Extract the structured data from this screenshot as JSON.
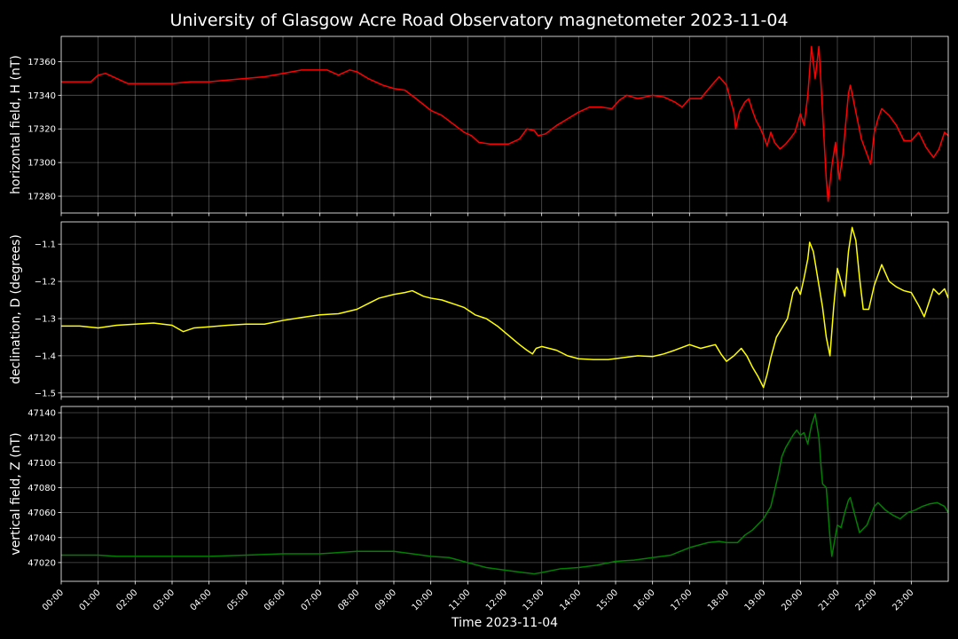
{
  "chart_data": {
    "type": "line",
    "title": "University of Glasgow Acre Road Observatory magnetometer 2023-11-04",
    "xlabel": "Time 2023-11-04",
    "x_ticks": [
      "00:00",
      "01:00",
      "02:00",
      "03:00",
      "04:00",
      "05:00",
      "06:00",
      "07:00",
      "08:00",
      "09:00",
      "10:00",
      "11:00",
      "12:00",
      "13:00",
      "14:00",
      "15:00",
      "16:00",
      "17:00",
      "18:00",
      "19:00",
      "20:00",
      "21:00",
      "22:00",
      "23:00"
    ],
    "xlim": [
      0,
      24
    ],
    "grid": true,
    "panels": [
      {
        "ylabel": "horizontal field, H (nT)",
        "color": "#ff0000",
        "ylim": [
          17270,
          17375
        ],
        "yticks": [
          17280,
          17300,
          17320,
          17340,
          17360
        ],
        "ytick_labels": [
          "17280",
          "17300",
          "17320",
          "17340",
          "17360"
        ],
        "points": [
          [
            0,
            17348
          ],
          [
            0.5,
            17348
          ],
          [
            0.8,
            17348
          ],
          [
            1.0,
            17352
          ],
          [
            1.2,
            17353
          ],
          [
            1.5,
            17350
          ],
          [
            1.8,
            17347
          ],
          [
            2.0,
            17347
          ],
          [
            2.5,
            17347
          ],
          [
            3.0,
            17347
          ],
          [
            3.5,
            17348
          ],
          [
            4.0,
            17348
          ],
          [
            4.5,
            17349
          ],
          [
            5.0,
            17350
          ],
          [
            5.5,
            17351
          ],
          [
            6.0,
            17353
          ],
          [
            6.5,
            17355
          ],
          [
            7.0,
            17355
          ],
          [
            7.2,
            17355
          ],
          [
            7.5,
            17352
          ],
          [
            7.8,
            17355
          ],
          [
            8.0,
            17354
          ],
          [
            8.3,
            17350
          ],
          [
            8.7,
            17346
          ],
          [
            9.0,
            17344
          ],
          [
            9.3,
            17343
          ],
          [
            9.6,
            17338
          ],
          [
            10.0,
            17331
          ],
          [
            10.3,
            17328
          ],
          [
            10.6,
            17323
          ],
          [
            10.9,
            17318
          ],
          [
            11.1,
            17316
          ],
          [
            11.3,
            17312
          ],
          [
            11.6,
            17311
          ],
          [
            11.9,
            17311
          ],
          [
            12.1,
            17311
          ],
          [
            12.4,
            17314
          ],
          [
            12.6,
            17320
          ],
          [
            12.8,
            17319
          ],
          [
            12.9,
            17316
          ],
          [
            13.1,
            17317
          ],
          [
            13.4,
            17322
          ],
          [
            13.7,
            17326
          ],
          [
            14.0,
            17330
          ],
          [
            14.3,
            17333
          ],
          [
            14.6,
            17333
          ],
          [
            14.9,
            17332
          ],
          [
            15.1,
            17337
          ],
          [
            15.3,
            17340
          ],
          [
            15.6,
            17338
          ],
          [
            16.0,
            17340
          ],
          [
            16.3,
            17339
          ],
          [
            16.6,
            17336
          ],
          [
            16.8,
            17333
          ],
          [
            17.0,
            17338
          ],
          [
            17.3,
            17338
          ],
          [
            17.6,
            17346
          ],
          [
            17.8,
            17351
          ],
          [
            18.0,
            17346
          ],
          [
            18.1,
            17338
          ],
          [
            18.2,
            17330
          ],
          [
            18.25,
            17320
          ],
          [
            18.35,
            17330
          ],
          [
            18.5,
            17336
          ],
          [
            18.6,
            17338
          ],
          [
            18.7,
            17331
          ],
          [
            18.8,
            17325
          ],
          [
            18.9,
            17321
          ],
          [
            19.0,
            17316
          ],
          [
            19.1,
            17310
          ],
          [
            19.2,
            17318
          ],
          [
            19.3,
            17312
          ],
          [
            19.45,
            17308
          ],
          [
            19.6,
            17311
          ],
          [
            19.75,
            17315
          ],
          [
            19.85,
            17318
          ],
          [
            20.0,
            17329
          ],
          [
            20.1,
            17322
          ],
          [
            20.2,
            17340
          ],
          [
            20.3,
            17369
          ],
          [
            20.4,
            17350
          ],
          [
            20.5,
            17369
          ],
          [
            20.6,
            17330
          ],
          [
            20.7,
            17290
          ],
          [
            20.75,
            17277
          ],
          [
            20.85,
            17298
          ],
          [
            20.95,
            17312
          ],
          [
            21.05,
            17290
          ],
          [
            21.15,
            17305
          ],
          [
            21.3,
            17341
          ],
          [
            21.35,
            17346
          ],
          [
            21.5,
            17330
          ],
          [
            21.65,
            17314
          ],
          [
            21.8,
            17305
          ],
          [
            21.9,
            17299
          ],
          [
            22.0,
            17318
          ],
          [
            22.1,
            17326
          ],
          [
            22.2,
            17332
          ],
          [
            22.4,
            17328
          ],
          [
            22.6,
            17322
          ],
          [
            22.8,
            17313
          ],
          [
            23.0,
            17313
          ],
          [
            23.2,
            17318
          ],
          [
            23.4,
            17309
          ],
          [
            23.6,
            17303
          ],
          [
            23.75,
            17308
          ],
          [
            23.9,
            17318
          ],
          [
            24.0,
            17316
          ]
        ]
      },
      {
        "ylabel": "declination, D (degrees)",
        "color": "#ffff00",
        "ylim": [
          -1.51,
          -1.04
        ],
        "yticks": [
          -1.5,
          -1.4,
          -1.3,
          -1.2,
          -1.1
        ],
        "ytick_labels": [
          "−1.5",
          "−1.4",
          "−1.3",
          "−1.2",
          "−1.1"
        ],
        "points": [
          [
            0,
            -1.32
          ],
          [
            0.5,
            -1.32
          ],
          [
            1.0,
            -1.325
          ],
          [
            1.5,
            -1.318
          ],
          [
            2.0,
            -1.315
          ],
          [
            2.5,
            -1.312
          ],
          [
            3.0,
            -1.318
          ],
          [
            3.3,
            -1.335
          ],
          [
            3.6,
            -1.325
          ],
          [
            4.0,
            -1.322
          ],
          [
            4.5,
            -1.318
          ],
          [
            5.0,
            -1.315
          ],
          [
            5.5,
            -1.315
          ],
          [
            6.0,
            -1.305
          ],
          [
            6.5,
            -1.297
          ],
          [
            7.0,
            -1.29
          ],
          [
            7.5,
            -1.287
          ],
          [
            8.0,
            -1.275
          ],
          [
            8.3,
            -1.26
          ],
          [
            8.6,
            -1.245
          ],
          [
            9.0,
            -1.235
          ],
          [
            9.3,
            -1.23
          ],
          [
            9.5,
            -1.225
          ],
          [
            9.8,
            -1.24
          ],
          [
            10.0,
            -1.245
          ],
          [
            10.3,
            -1.25
          ],
          [
            10.6,
            -1.26
          ],
          [
            10.9,
            -1.27
          ],
          [
            11.2,
            -1.29
          ],
          [
            11.5,
            -1.3
          ],
          [
            11.8,
            -1.32
          ],
          [
            12.1,
            -1.345
          ],
          [
            12.4,
            -1.37
          ],
          [
            12.6,
            -1.385
          ],
          [
            12.75,
            -1.395
          ],
          [
            12.85,
            -1.38
          ],
          [
            13.0,
            -1.375
          ],
          [
            13.4,
            -1.385
          ],
          [
            13.7,
            -1.4
          ],
          [
            14.0,
            -1.408
          ],
          [
            14.4,
            -1.41
          ],
          [
            14.8,
            -1.41
          ],
          [
            15.2,
            -1.405
          ],
          [
            15.6,
            -1.4
          ],
          [
            16.0,
            -1.402
          ],
          [
            16.3,
            -1.395
          ],
          [
            16.6,
            -1.385
          ],
          [
            17.0,
            -1.37
          ],
          [
            17.3,
            -1.38
          ],
          [
            17.5,
            -1.375
          ],
          [
            17.7,
            -1.37
          ],
          [
            17.85,
            -1.395
          ],
          [
            18.0,
            -1.415
          ],
          [
            18.2,
            -1.4
          ],
          [
            18.4,
            -1.38
          ],
          [
            18.55,
            -1.4
          ],
          [
            18.7,
            -1.43
          ],
          [
            18.85,
            -1.455
          ],
          [
            19.0,
            -1.485
          ],
          [
            19.1,
            -1.45
          ],
          [
            19.2,
            -1.405
          ],
          [
            19.35,
            -1.35
          ],
          [
            19.5,
            -1.325
          ],
          [
            19.65,
            -1.3
          ],
          [
            19.8,
            -1.23
          ],
          [
            19.9,
            -1.215
          ],
          [
            20.0,
            -1.235
          ],
          [
            20.1,
            -1.19
          ],
          [
            20.2,
            -1.14
          ],
          [
            20.25,
            -1.095
          ],
          [
            20.35,
            -1.12
          ],
          [
            20.5,
            -1.21
          ],
          [
            20.6,
            -1.27
          ],
          [
            20.7,
            -1.35
          ],
          [
            20.8,
            -1.4
          ],
          [
            20.9,
            -1.27
          ],
          [
            21.0,
            -1.165
          ],
          [
            21.1,
            -1.2
          ],
          [
            21.2,
            -1.24
          ],
          [
            21.3,
            -1.12
          ],
          [
            21.4,
            -1.055
          ],
          [
            21.5,
            -1.09
          ],
          [
            21.6,
            -1.19
          ],
          [
            21.7,
            -1.275
          ],
          [
            21.85,
            -1.275
          ],
          [
            22.0,
            -1.21
          ],
          [
            22.2,
            -1.155
          ],
          [
            22.4,
            -1.2
          ],
          [
            22.6,
            -1.215
          ],
          [
            22.8,
            -1.225
          ],
          [
            23.0,
            -1.23
          ],
          [
            23.2,
            -1.265
          ],
          [
            23.35,
            -1.295
          ],
          [
            23.5,
            -1.25
          ],
          [
            23.6,
            -1.22
          ],
          [
            23.75,
            -1.235
          ],
          [
            23.9,
            -1.22
          ],
          [
            24.0,
            -1.245
          ]
        ]
      },
      {
        "ylabel": "vertical field, Z (nT)",
        "color": "#008000",
        "ylim": [
          47005,
          47145
        ],
        "yticks": [
          47020,
          47040,
          47060,
          47080,
          47100,
          47120,
          47140
        ],
        "ytick_labels": [
          "47020",
          "47040",
          "47060",
          "47080",
          "47100",
          "47120",
          "47140"
        ],
        "points": [
          [
            0,
            47026
          ],
          [
            1.0,
            47026
          ],
          [
            1.5,
            47025
          ],
          [
            2.0,
            47025
          ],
          [
            3.0,
            47025
          ],
          [
            4.0,
            47025
          ],
          [
            5.0,
            47026
          ],
          [
            6.0,
            47027
          ],
          [
            7.0,
            47027
          ],
          [
            8.0,
            47029
          ],
          [
            9.0,
            47029
          ],
          [
            9.5,
            47027
          ],
          [
            10.0,
            47025
          ],
          [
            10.5,
            47024
          ],
          [
            11.0,
            47020
          ],
          [
            11.5,
            47016
          ],
          [
            12.0,
            47014
          ],
          [
            12.5,
            47012
          ],
          [
            12.8,
            47011
          ],
          [
            13.0,
            47012
          ],
          [
            13.5,
            47015
          ],
          [
            14.0,
            47016
          ],
          [
            14.5,
            47018
          ],
          [
            15.0,
            47021
          ],
          [
            15.5,
            47022
          ],
          [
            16.0,
            47024
          ],
          [
            16.5,
            47026
          ],
          [
            17.0,
            47032
          ],
          [
            17.5,
            47036
          ],
          [
            17.8,
            47037
          ],
          [
            18.0,
            47036
          ],
          [
            18.3,
            47036
          ],
          [
            18.5,
            47042
          ],
          [
            18.7,
            47046
          ],
          [
            19.0,
            47055
          ],
          [
            19.2,
            47065
          ],
          [
            19.4,
            47090
          ],
          [
            19.5,
            47105
          ],
          [
            19.6,
            47112
          ],
          [
            19.8,
            47122
          ],
          [
            19.9,
            47126
          ],
          [
            20.0,
            47122
          ],
          [
            20.1,
            47124
          ],
          [
            20.2,
            47115
          ],
          [
            20.3,
            47130
          ],
          [
            20.4,
            47139
          ],
          [
            20.5,
            47120
          ],
          [
            20.55,
            47100
          ],
          [
            20.6,
            47083
          ],
          [
            20.7,
            47080
          ],
          [
            20.8,
            47040
          ],
          [
            20.85,
            47025
          ],
          [
            21.0,
            47050
          ],
          [
            21.1,
            47048
          ],
          [
            21.2,
            47060
          ],
          [
            21.3,
            47070
          ],
          [
            21.35,
            47072
          ],
          [
            21.5,
            47055
          ],
          [
            21.6,
            47044
          ],
          [
            21.8,
            47050
          ],
          [
            22.0,
            47065
          ],
          [
            22.1,
            47068
          ],
          [
            22.3,
            47062
          ],
          [
            22.5,
            47058
          ],
          [
            22.7,
            47055
          ],
          [
            22.9,
            47060
          ],
          [
            23.1,
            47062
          ],
          [
            23.3,
            47065
          ],
          [
            23.5,
            47067
          ],
          [
            23.7,
            47068
          ],
          [
            23.9,
            47065
          ],
          [
            24.0,
            47060
          ]
        ]
      }
    ]
  }
}
